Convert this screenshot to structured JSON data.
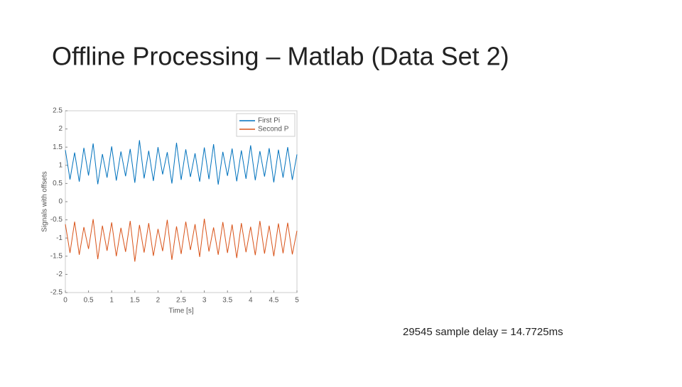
{
  "slide": {
    "title": "Offline Processing – Matlab (Data Set 2)",
    "caption": "29545 sample delay = 14.7725ms"
  },
  "chart_data": {
    "type": "line",
    "xlabel": "Time [s]",
    "ylabel": "Signals with offsets",
    "x": [
      0,
      0.1,
      0.2,
      0.3,
      0.4,
      0.5,
      0.6,
      0.7,
      0.8,
      0.9,
      1,
      1.1,
      1.2,
      1.3,
      1.4,
      1.5,
      1.6,
      1.7,
      1.8,
      1.9,
      2,
      2.1,
      2.2,
      2.3,
      2.4,
      2.5,
      2.6,
      2.7,
      2.8,
      2.9,
      3,
      3.1,
      3.2,
      3.3,
      3.4,
      3.5,
      3.6,
      3.7,
      3.8,
      3.9,
      4,
      4.1,
      4.2,
      4.3,
      4.4,
      4.5,
      4.6,
      4.7,
      4.8,
      4.9,
      5
    ],
    "series": [
      {
        "name": "First Pi",
        "color": "#0072bd",
        "values": [
          1.42,
          0.61,
          1.35,
          0.55,
          1.48,
          0.72,
          1.6,
          0.48,
          1.31,
          0.66,
          1.52,
          0.58,
          1.38,
          0.7,
          1.45,
          0.52,
          1.69,
          0.64,
          1.4,
          0.57,
          1.5,
          0.75,
          1.36,
          0.5,
          1.62,
          0.6,
          1.44,
          0.68,
          1.33,
          0.55,
          1.49,
          0.62,
          1.58,
          0.47,
          1.37,
          0.71,
          1.46,
          0.56,
          1.41,
          0.63,
          1.55,
          0.59,
          1.39,
          0.69,
          1.47,
          0.53,
          1.43,
          0.66,
          1.5,
          0.6,
          1.3
        ]
      },
      {
        "name": "Second P",
        "color": "#d95319",
        "values": [
          -0.62,
          -1.41,
          -0.55,
          -1.46,
          -0.7,
          -1.3,
          -0.48,
          -1.58,
          -0.66,
          -1.35,
          -0.57,
          -1.5,
          -0.72,
          -1.38,
          -0.53,
          -1.65,
          -0.64,
          -1.4,
          -0.59,
          -1.49,
          -0.75,
          -1.36,
          -0.5,
          -1.6,
          -0.68,
          -1.44,
          -0.55,
          -1.33,
          -0.62,
          -1.52,
          -0.47,
          -1.37,
          -0.71,
          -1.46,
          -0.56,
          -1.41,
          -0.63,
          -1.55,
          -0.59,
          -1.39,
          -0.69,
          -1.47,
          -0.53,
          -1.43,
          -0.66,
          -1.5,
          -0.6,
          -1.42,
          -0.58,
          -1.45,
          -0.8
        ]
      }
    ],
    "xlim": [
      0,
      5
    ],
    "xticks": [
      0,
      0.5,
      1,
      1.5,
      2,
      2.5,
      3,
      3.5,
      4,
      4.5,
      5
    ],
    "ylim": [
      -2.5,
      2.5
    ],
    "yticks": [
      -2.5,
      -2,
      -1.5,
      -1,
      -0.5,
      0,
      0.5,
      1,
      1.5,
      2,
      2.5
    ],
    "grid": false,
    "legend": "northeast"
  }
}
